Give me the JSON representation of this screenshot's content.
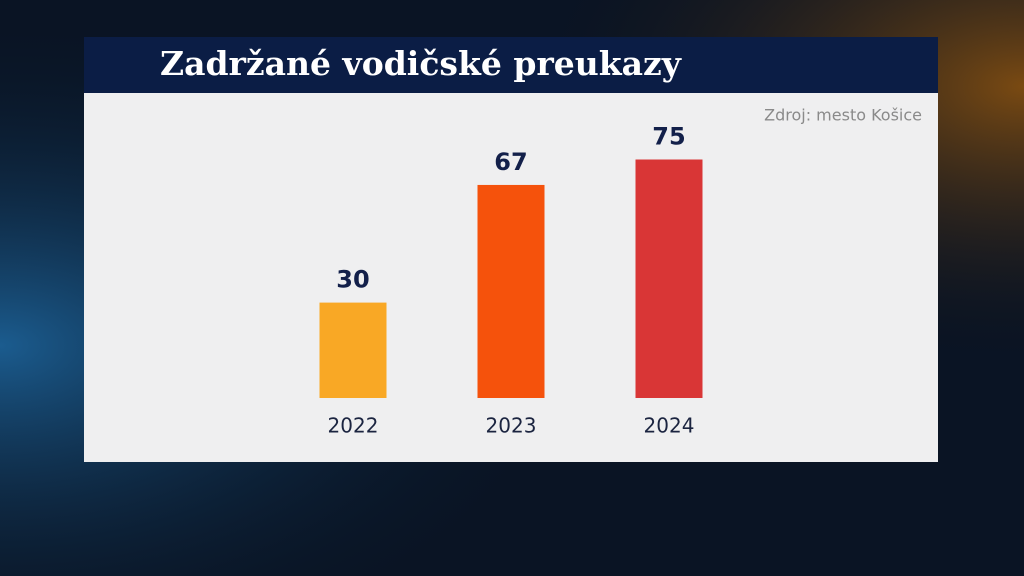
{
  "chart_data": {
    "type": "bar",
    "title": "Zadržané vodičské preukazy",
    "source": "Zdroj: mesto Košice",
    "categories": [
      "2022",
      "2023",
      "2024"
    ],
    "values": [
      30,
      67,
      75
    ],
    "colors": [
      "#f9a825",
      "#f5520c",
      "#d93636"
    ]
  }
}
